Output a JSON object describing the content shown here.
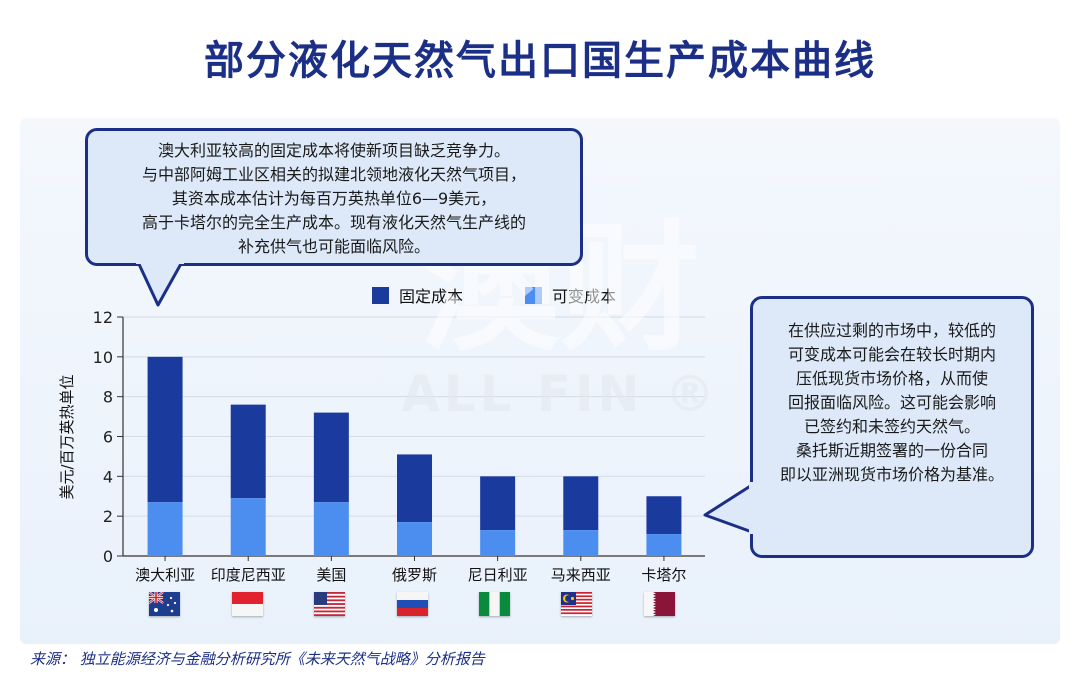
{
  "title": "部分液化天然气出口国生产成本曲线",
  "watermark": {
    "main": "澳财",
    "sub": "ALL FIN ®"
  },
  "callout_left": {
    "lines": [
      "澳大利亚较高的固定成本将使新项目缺乏竞争力。",
      "与中部阿姆工业区相关的拟建北领地液化天然气项目，",
      "其资本成本估计为每百万英热单位6—9美元，",
      "高于卡塔尔的完全生产成本。现有液化天然气生产线的",
      "补充供气也可能面临风险。"
    ]
  },
  "callout_right": {
    "lines": [
      "在供应过剩的市场中，较低的",
      "可变成本可能会在较长时期内",
      "压低现货市场价格，从而使",
      "回报面临风险。这可能会影响",
      "已签约和未签约天然气。",
      "桑托斯近期签署的一份合同",
      "即以亚洲现货市场价格为基准。"
    ]
  },
  "source": "来源： 独立能源经济与金融分析研究所《未来天然气战略》分析报告",
  "colors": {
    "fixed": "#1b3a9e",
    "variable": "#4c8ef0",
    "accent": "#1c2f86"
  },
  "flags": [
    "australia-flag",
    "indonesia-flag",
    "usa-flag",
    "russia-flag",
    "nigeria-flag",
    "malaysia-flag",
    "qatar-flag"
  ],
  "chart_data": {
    "type": "bar",
    "stacked": true,
    "categories": [
      "澳大利亚",
      "印度尼西亚",
      "美国",
      "俄罗斯",
      "尼日利亚",
      "马来西亚",
      "卡塔尔"
    ],
    "series": [
      {
        "name": "可变成本",
        "values": [
          2.7,
          2.9,
          2.7,
          1.7,
          1.3,
          1.3,
          1.1
        ]
      },
      {
        "name": "固定成本",
        "values": [
          7.3,
          4.7,
          4.5,
          3.4,
          2.7,
          2.7,
          1.9
        ]
      }
    ],
    "totals": [
      10.0,
      7.6,
      7.2,
      5.1,
      4.0,
      4.0,
      3.0
    ],
    "ylabel": "美元/百万英热单位",
    "ylim": [
      0,
      12
    ],
    "yticks": [
      0,
      2,
      4,
      6,
      8,
      10,
      12
    ],
    "legend": [
      "固定成本",
      "可变成本"
    ],
    "legend_position": "top",
    "grid": true
  }
}
